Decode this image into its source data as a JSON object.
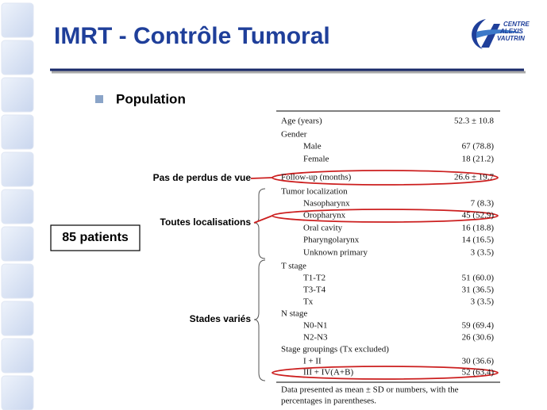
{
  "header": {
    "title": "IMRT - Contrôle Tumoral",
    "logo": [
      "CENTRE",
      "ALEXIS",
      "VAUTRIN"
    ]
  },
  "bullet": "Population",
  "patients_box": "85 patients",
  "annotations": [
    "Pas de perdus de vue",
    "Toutes localisations",
    "Stades variés"
  ],
  "table": {
    "rows": [
      [
        "Age (years)",
        "52.3 ± 10.8"
      ],
      [
        "Gender"
      ],
      [
        "Male",
        "67 (78.8)"
      ],
      [
        "Female",
        "18 (21.2)"
      ],
      [
        "Follow-up (months)",
        "26.6 ± 19.7"
      ],
      [
        "Tumor localization"
      ],
      [
        "Nasopharynx",
        "7 (8.3)"
      ],
      [
        "Oropharynx",
        "45 (52.9)"
      ],
      [
        "Oral cavity",
        "16 (18.8)"
      ],
      [
        "Pharyngolarynx",
        "14 (16.5)"
      ],
      [
        "Unknown primary",
        "3 (3.5)"
      ],
      [
        "T stage"
      ],
      [
        "T1-T2",
        "51 (60.0)"
      ],
      [
        "T3-T4",
        "31 (36.5)"
      ],
      [
        "Tx",
        "3 (3.5)"
      ],
      [
        "N stage"
      ],
      [
        "N0-N1",
        "59 (69.4)"
      ],
      [
        "N2-N3",
        "26 (30.6)"
      ],
      [
        "Stage groupings (Tx excluded)"
      ],
      [
        "I + II",
        "30 (36.6)"
      ],
      [
        "III + IV(A+B)",
        "52 (63.4)"
      ]
    ],
    "footnote": [
      "Data presented as mean ± SD or numbers, with the",
      "percentages in parentheses."
    ]
  }
}
